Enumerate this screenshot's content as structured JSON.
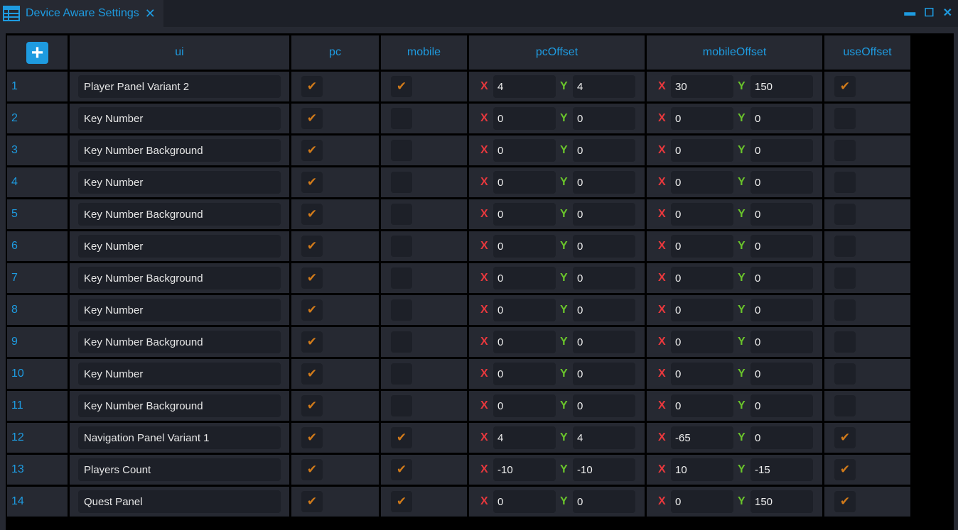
{
  "window": {
    "title": "Device Aware Settings",
    "close": "✕",
    "minimize": "▬",
    "maximize": "☐",
    "win_close": "✕"
  },
  "columns": [
    "ui",
    "pc",
    "mobile",
    "pcOffset",
    "mobileOffset",
    "useOffset"
  ],
  "add_label": "+",
  "x_label": "X",
  "y_label": "Y",
  "check": "✔",
  "rows": [
    {
      "n": "1",
      "ui": "Player Panel Variant 2",
      "pc": true,
      "mobile": true,
      "pcx": "4",
      "pcy": "4",
      "mx": "30",
      "my": "150",
      "use": true
    },
    {
      "n": "2",
      "ui": "Key Number",
      "pc": true,
      "mobile": false,
      "pcx": "0",
      "pcy": "0",
      "mx": "0",
      "my": "0",
      "use": false
    },
    {
      "n": "3",
      "ui": "Key Number Background",
      "pc": true,
      "mobile": false,
      "pcx": "0",
      "pcy": "0",
      "mx": "0",
      "my": "0",
      "use": false
    },
    {
      "n": "4",
      "ui": "Key Number",
      "pc": true,
      "mobile": false,
      "pcx": "0",
      "pcy": "0",
      "mx": "0",
      "my": "0",
      "use": false
    },
    {
      "n": "5",
      "ui": "Key Number Background",
      "pc": true,
      "mobile": false,
      "pcx": "0",
      "pcy": "0",
      "mx": "0",
      "my": "0",
      "use": false
    },
    {
      "n": "6",
      "ui": "Key Number",
      "pc": true,
      "mobile": false,
      "pcx": "0",
      "pcy": "0",
      "mx": "0",
      "my": "0",
      "use": false
    },
    {
      "n": "7",
      "ui": "Key Number Background",
      "pc": true,
      "mobile": false,
      "pcx": "0",
      "pcy": "0",
      "mx": "0",
      "my": "0",
      "use": false
    },
    {
      "n": "8",
      "ui": "Key Number",
      "pc": true,
      "mobile": false,
      "pcx": "0",
      "pcy": "0",
      "mx": "0",
      "my": "0",
      "use": false
    },
    {
      "n": "9",
      "ui": "Key Number Background",
      "pc": true,
      "mobile": false,
      "pcx": "0",
      "pcy": "0",
      "mx": "0",
      "my": "0",
      "use": false
    },
    {
      "n": "10",
      "ui": "Key Number",
      "pc": true,
      "mobile": false,
      "pcx": "0",
      "pcy": "0",
      "mx": "0",
      "my": "0",
      "use": false
    },
    {
      "n": "11",
      "ui": "Key Number Background",
      "pc": true,
      "mobile": false,
      "pcx": "0",
      "pcy": "0",
      "mx": "0",
      "my": "0",
      "use": false
    },
    {
      "n": "12",
      "ui": "Navigation Panel Variant 1",
      "pc": true,
      "mobile": true,
      "pcx": "4",
      "pcy": "4",
      "mx": "-65",
      "my": "0",
      "use": true
    },
    {
      "n": "13",
      "ui": "Players Count",
      "pc": true,
      "mobile": true,
      "pcx": "-10",
      "pcy": "-10",
      "mx": "10",
      "my": "-15",
      "use": true
    },
    {
      "n": "14",
      "ui": "Quest Panel",
      "pc": true,
      "mobile": true,
      "pcx": "0",
      "pcy": "0",
      "mx": "0",
      "my": "150",
      "use": true
    }
  ]
}
